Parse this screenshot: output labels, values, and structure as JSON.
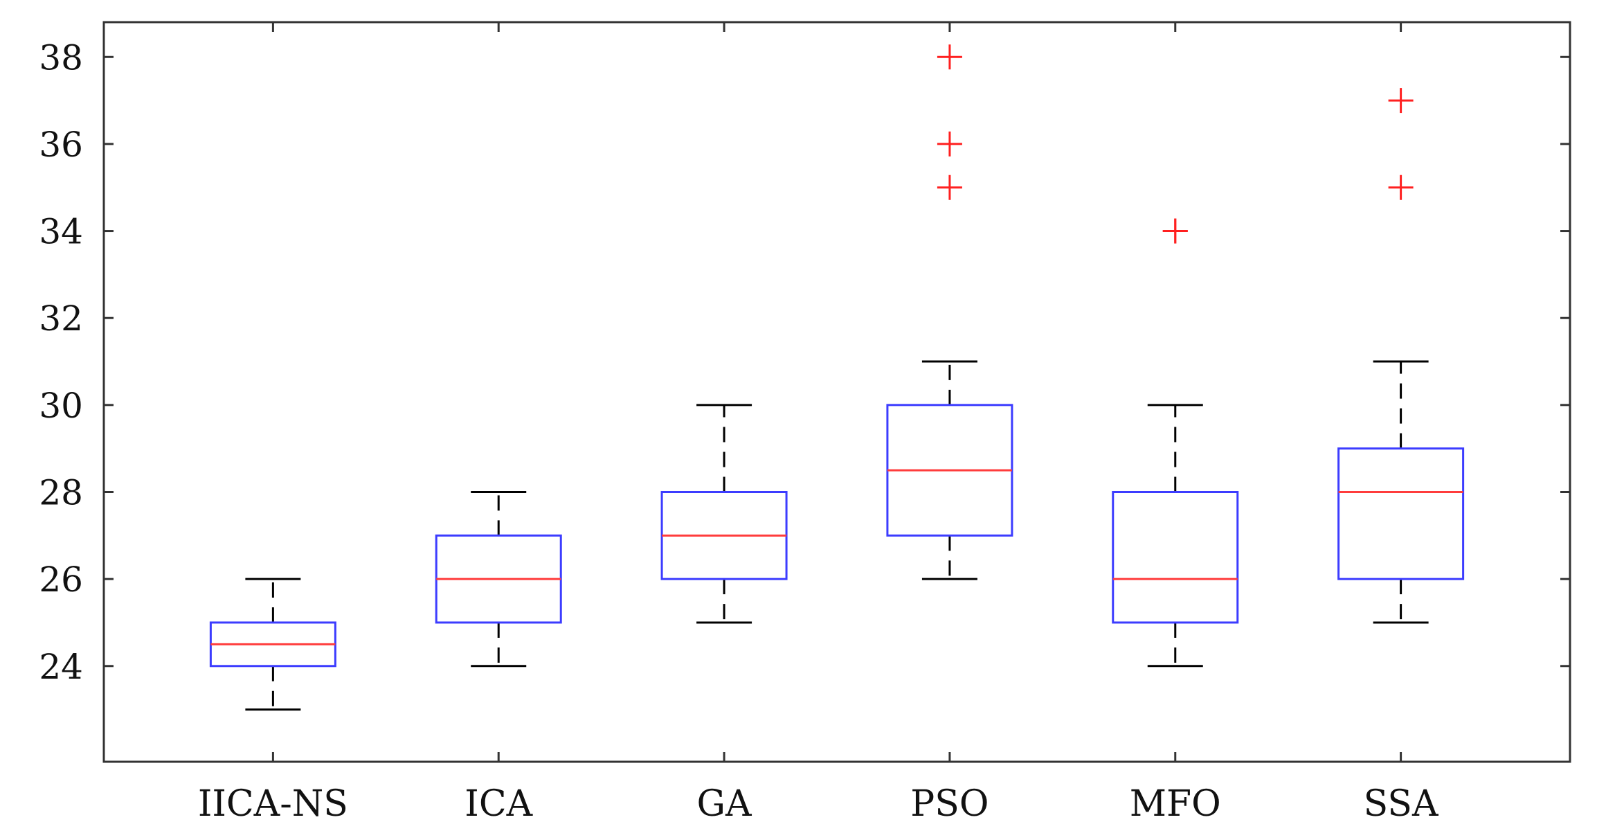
{
  "chart_data": {
    "type": "boxplot",
    "title": "",
    "xlabel": "",
    "ylabel": "",
    "ylim": [
      21.8,
      38.8
    ],
    "yticks": [
      24,
      26,
      28,
      30,
      32,
      34,
      36,
      38
    ],
    "categories": [
      "IICA-NS",
      "ICA",
      "GA",
      "PSO",
      "MFO",
      "SSA"
    ],
    "boxes": [
      {
        "name": "IICA-NS",
        "whisker_low": 23,
        "q1": 24,
        "median": 24.5,
        "q3": 25,
        "whisker_high": 26,
        "outliers": []
      },
      {
        "name": "ICA",
        "whisker_low": 24,
        "q1": 25,
        "median": 26,
        "q3": 27,
        "whisker_high": 28,
        "outliers": []
      },
      {
        "name": "GA",
        "whisker_low": 25,
        "q1": 26,
        "median": 27,
        "q3": 28,
        "whisker_high": 30,
        "outliers": []
      },
      {
        "name": "PSO",
        "whisker_low": 26,
        "q1": 27,
        "median": 28.5,
        "q3": 30,
        "whisker_high": 31,
        "outliers": [
          35,
          36,
          38
        ]
      },
      {
        "name": "MFO",
        "whisker_low": 24,
        "q1": 25,
        "median": 26,
        "q3": 28,
        "whisker_high": 30,
        "outliers": [
          34,
          34
        ]
      },
      {
        "name": "SSA",
        "whisker_low": 25,
        "q1": 26,
        "median": 28,
        "q3": 29,
        "whisker_high": 31,
        "outliers": [
          35,
          37
        ]
      }
    ],
    "colors": {
      "box": "#3c3cff",
      "median": "#ff3c3c",
      "whisker": "#000000",
      "outlier": "#ff2020",
      "axes": "#333333"
    }
  }
}
